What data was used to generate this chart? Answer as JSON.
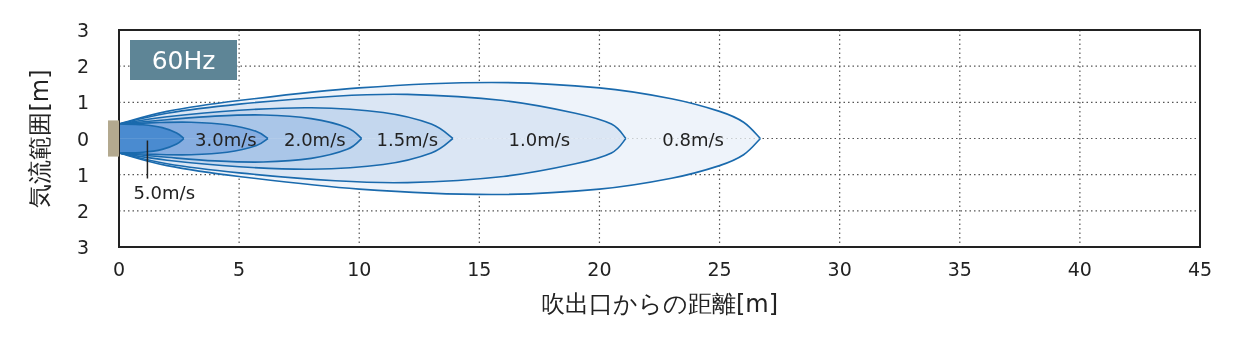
{
  "chart_data": {
    "type": "area",
    "xlabel": "吹出口からの距離[m]",
    "ylabel": "気流範囲[m]",
    "annotations": [
      "60Hz"
    ],
    "xlim": [
      0,
      45
    ],
    "xticks": [
      0,
      5,
      10,
      15,
      20,
      25,
      30,
      35,
      40,
      45
    ],
    "ylim": [
      -3,
      3
    ],
    "yticks": [
      {
        "value": -3,
        "label": "3"
      },
      {
        "value": -2,
        "label": "2"
      },
      {
        "value": -1,
        "label": "1"
      },
      0,
      1,
      2,
      3
    ],
    "grid": true,
    "series": [
      {
        "name": "0.8m/s",
        "color": "#eef3fa",
        "x": [
          0,
          2,
          5,
          10,
          15.5,
          20,
          23,
          25,
          26,
          26.7
        ],
        "values": [
          0.4,
          0.75,
          1.05,
          1.4,
          1.55,
          1.4,
          1.1,
          0.75,
          0.45,
          0
        ]
      },
      {
        "color": "#eef3fa",
        "x": [
          0,
          2,
          5,
          10,
          15.5,
          20,
          23,
          25,
          26,
          26.7
        ],
        "values": [
          -0.4,
          -0.75,
          -1.05,
          -1.4,
          -1.55,
          -1.4,
          -1.1,
          -0.75,
          -0.45,
          0
        ]
      },
      {
        "name": "1.0m/s",
        "color": "#dbe6f4",
        "x": [
          0,
          2,
          5,
          9,
          12,
          16,
          19,
          20.5,
          21.1
        ],
        "values": [
          0.4,
          0.7,
          0.95,
          1.17,
          1.22,
          1.05,
          0.7,
          0.4,
          0
        ]
      },
      {
        "color": "#dbe6f4",
        "x": [
          0,
          2,
          5,
          9,
          12,
          16,
          19,
          20.5,
          21.1
        ],
        "values": [
          -0.4,
          -0.7,
          -0.95,
          -1.17,
          -1.22,
          -1.05,
          -0.7,
          -0.4,
          0
        ]
      },
      {
        "name": "1.5m/s",
        "color": "#c4d7ee",
        "x": [
          0,
          2,
          5,
          8,
          11,
          13,
          13.9
        ],
        "values": [
          0.4,
          0.6,
          0.78,
          0.85,
          0.72,
          0.4,
          0
        ]
      },
      {
        "color": "#c4d7ee",
        "x": [
          0,
          2,
          5,
          8,
          11,
          13,
          13.9
        ],
        "values": [
          -0.4,
          -0.6,
          -0.78,
          -0.85,
          -0.72,
          -0.4,
          0
        ]
      },
      {
        "name": "2.0m/s",
        "color": "#aac6e8",
        "x": [
          0,
          2,
          4,
          6,
          8,
          9.5,
          10.1
        ],
        "values": [
          0.4,
          0.52,
          0.62,
          0.65,
          0.55,
          0.3,
          0
        ]
      },
      {
        "color": "#aac6e8",
        "x": [
          0,
          2,
          4,
          6,
          8,
          9.5,
          10.1
        ],
        "values": [
          -0.4,
          -0.52,
          -0.62,
          -0.65,
          -0.55,
          -0.3,
          0
        ]
      },
      {
        "name": "3.0m/s",
        "color": "#86ade0",
        "x": [
          0,
          1.5,
          3,
          4.5,
          5.7,
          6.2
        ],
        "values": [
          0.4,
          0.44,
          0.45,
          0.38,
          0.2,
          0
        ]
      },
      {
        "color": "#86ade0",
        "x": [
          0,
          1.5,
          3,
          4.5,
          5.7,
          6.2
        ],
        "values": [
          -0.4,
          -0.44,
          -0.45,
          -0.38,
          -0.2,
          0
        ]
      },
      {
        "name": "5.0m/s",
        "color": "#4a8bd0",
        "x": [
          0,
          1,
          1.8,
          2.4,
          2.7
        ],
        "values": [
          0.4,
          0.38,
          0.3,
          0.15,
          0
        ]
      },
      {
        "color": "#4a8bd0",
        "x": [
          0,
          1,
          1.8,
          2.4,
          2.7
        ],
        "values": [
          -0.4,
          -0.38,
          -0.3,
          -0.15,
          0
        ]
      }
    ]
  }
}
